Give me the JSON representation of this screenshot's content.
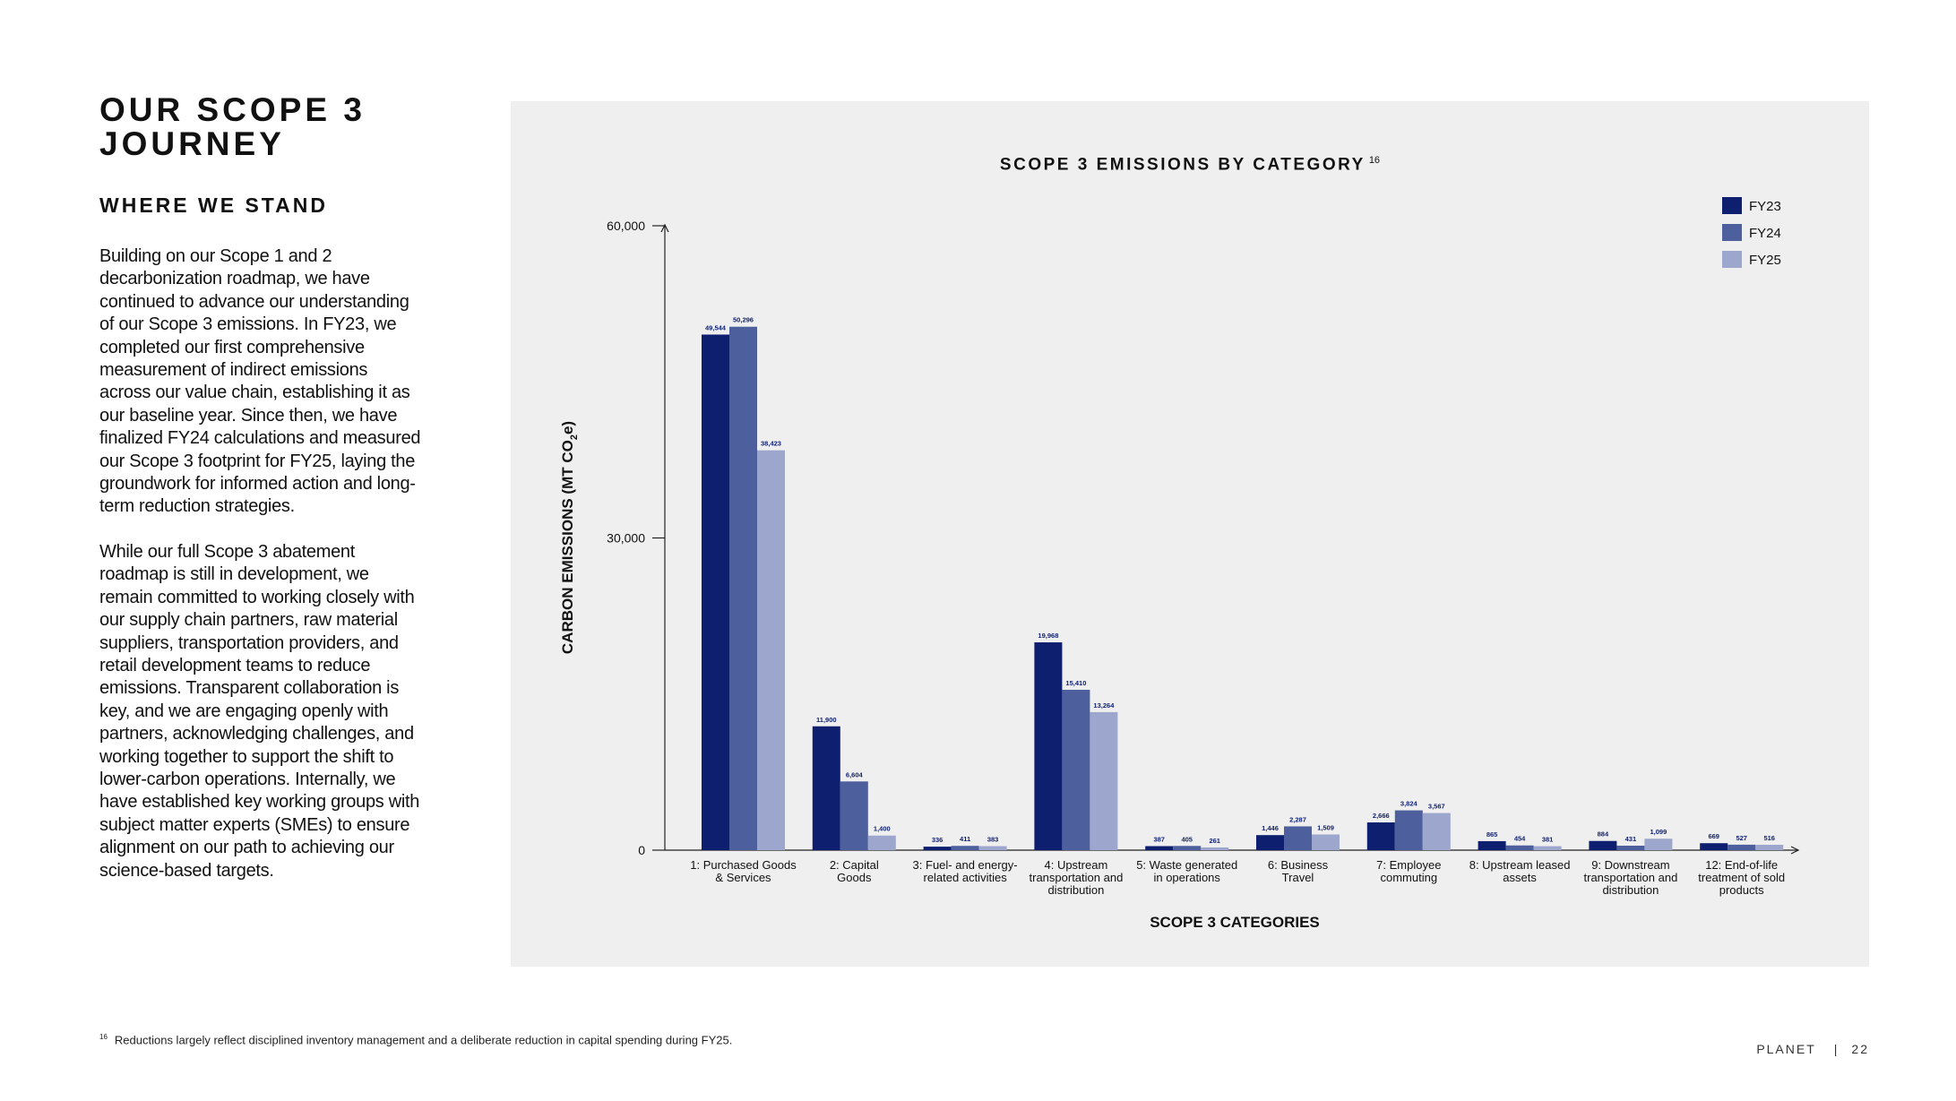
{
  "page": {
    "title_lines": [
      "OUR SCOPE 3",
      "JOURNEY"
    ],
    "subtitle": "WHERE WE STAND",
    "paragraphs": [
      "Building on our Scope 1 and 2 decarbonization roadmap, we have continued to advance our understanding of our Scope 3 emissions. In FY23, we completed our first comprehensive measurement of indirect emissions across our value chain, establishing it as our baseline year. Since then, we have finalized FY24 calculations and measured our Scope 3 footprint for FY25, laying the groundwork for informed action and long-term reduction strategies.",
      "While our full Scope 3 abatement roadmap is still in development, we remain committed to working closely with our supply chain partners, raw material suppliers, transportation providers, and retail development teams to reduce emissions. Transparent collaboration is key, and we are engaging openly with partners, acknowledging challenges, and working together to support the shift to lower-carbon operations. Internally, we have established key working groups with subject matter experts (SMEs) to ensure alignment on our path to achieving our science-based targets."
    ],
    "footnote_marker": "16",
    "footnote": "Reductions largely reflect disciplined inventory management and a deliberate reduction in capital spending during FY25.",
    "brand": "PLANET",
    "separator": "|",
    "page_number": "22"
  },
  "chart_data": {
    "type": "bar",
    "title": "SCOPE 3 EMISSIONS BY CATEGORY",
    "title_footnote": "16",
    "xlabel": "SCOPE 3 CATEGORIES",
    "ylabel": "CARBON EMISSIONS (MT CO2e)",
    "ylabel_parts": [
      "CARBON EMISSIONS (MT CO",
      "2",
      "e)"
    ],
    "ylim": [
      0,
      60000
    ],
    "yticks": [
      0,
      30000,
      60000
    ],
    "ytick_labels": [
      "0",
      "30,000",
      "60,000"
    ],
    "grid": false,
    "legend_position": "top-right",
    "categories": [
      [
        "1: Purchased Goods",
        "& Services"
      ],
      [
        "2: Capital",
        "Goods"
      ],
      [
        "3: Fuel- and energy-",
        "related activities"
      ],
      [
        "4: Upstream",
        "transportation and",
        "distribution"
      ],
      [
        "5: Waste generated",
        "in operations"
      ],
      [
        "6: Business",
        "Travel"
      ],
      [
        "7: Employee",
        "commuting"
      ],
      [
        "8: Upstream leased",
        "assets"
      ],
      [
        "9: Downstream",
        "transportation and",
        "distribution"
      ],
      [
        "12: End-of-life",
        "treatment of sold",
        "products"
      ]
    ],
    "series": [
      {
        "name": "FY23",
        "color": "#0d1f6e",
        "values": [
          49544,
          11900,
          336,
          19968,
          387,
          1446,
          2666,
          865,
          884,
          669
        ],
        "labels": [
          "49,544",
          "11,900",
          "336",
          "19,968",
          "387",
          "1,446",
          "2,666",
          "865",
          "884",
          "669"
        ]
      },
      {
        "name": "FY24",
        "color": "#4d5f9c",
        "values": [
          50296,
          6604,
          411,
          15410,
          405,
          2287,
          3824,
          454,
          431,
          527
        ],
        "labels": [
          "50,296",
          "6,604",
          "411",
          "15,410",
          "405",
          "2,287",
          "3,824",
          "454",
          "431",
          "527"
        ]
      },
      {
        "name": "FY25",
        "color": "#9da6cc",
        "values": [
          38423,
          1400,
          383,
          13264,
          261,
          1509,
          3567,
          381,
          1099,
          516
        ],
        "labels": [
          "38,423",
          "1,400",
          "383",
          "13,264",
          "261",
          "1,509",
          "3,567",
          "381",
          "1,099",
          "516"
        ]
      }
    ]
  }
}
